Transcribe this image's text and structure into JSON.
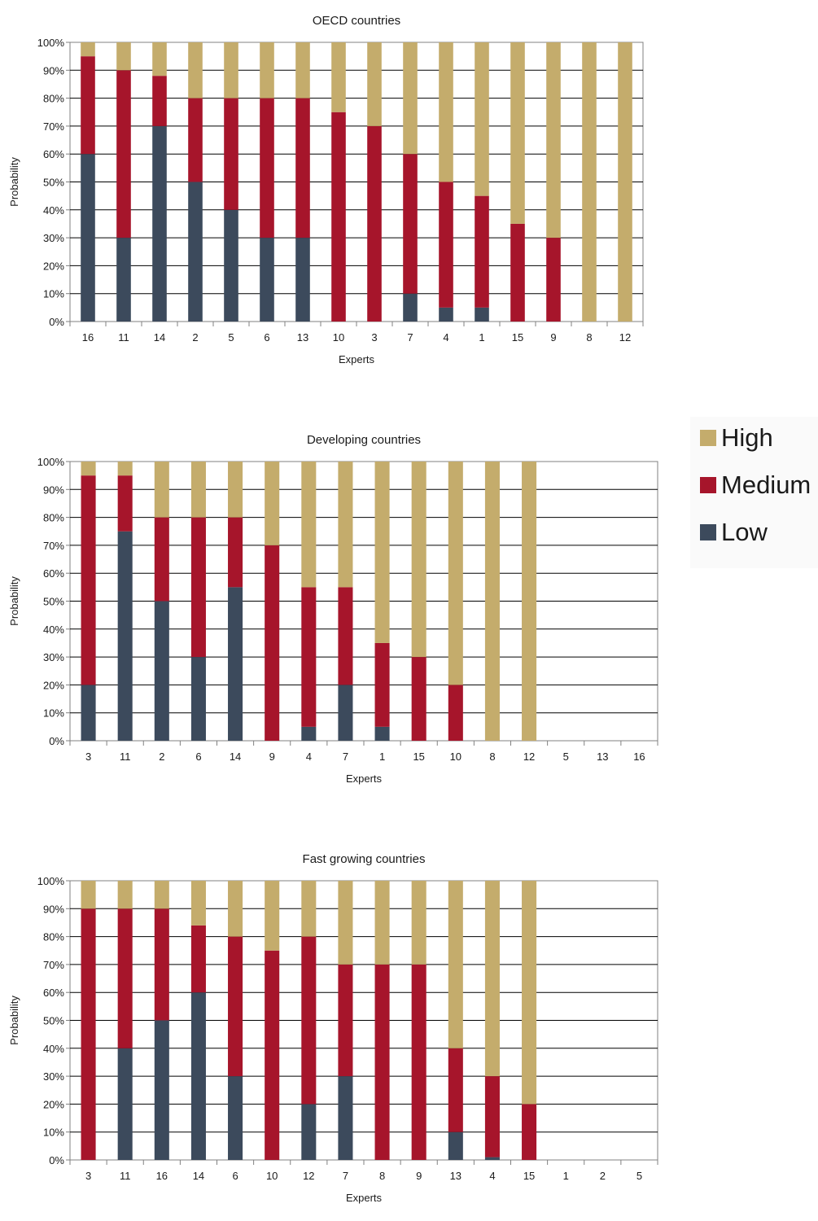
{
  "legend": {
    "items": [
      {
        "label": "High",
        "color": "#c4ac6c"
      },
      {
        "label": "Medium",
        "color": "#a6152b"
      },
      {
        "label": "Low",
        "color": "#3c4a5c"
      }
    ]
  },
  "chart_data": [
    {
      "type": "bar",
      "stacked": true,
      "title": "OECD countries",
      "xlabel": "Experts",
      "ylabel": "Probability",
      "ylim": [
        0,
        100
      ],
      "yticks": [
        "0%",
        "10%",
        "20%",
        "30%",
        "40%",
        "50%",
        "60%",
        "70%",
        "80%",
        "90%",
        "100%"
      ],
      "categories": [
        "16",
        "11",
        "14",
        "2",
        "5",
        "6",
        "13",
        "10",
        "3",
        "7",
        "4",
        "1",
        "15",
        "9",
        "8",
        "12"
      ],
      "series": [
        {
          "name": "Low",
          "values": [
            60,
            30,
            70,
            50,
            40,
            30,
            30,
            0,
            0,
            10,
            5,
            5,
            0,
            0,
            0,
            0
          ]
        },
        {
          "name": "Medium",
          "values": [
            35,
            60,
            18,
            30,
            40,
            50,
            50,
            75,
            70,
            50,
            45,
            40,
            35,
            30,
            0,
            0
          ]
        },
        {
          "name": "High",
          "values": [
            5,
            10,
            12,
            20,
            20,
            20,
            20,
            25,
            30,
            40,
            50,
            55,
            65,
            70,
            100,
            100
          ]
        }
      ]
    },
    {
      "type": "bar",
      "stacked": true,
      "title": "Developing countries",
      "xlabel": "Experts",
      "ylabel": "Probability",
      "ylim": [
        0,
        100
      ],
      "yticks": [
        "0%",
        "10%",
        "20%",
        "30%",
        "40%",
        "50%",
        "60%",
        "70%",
        "80%",
        "90%",
        "100%"
      ],
      "categories": [
        "3",
        "11",
        "2",
        "6",
        "14",
        "9",
        "4",
        "7",
        "1",
        "15",
        "10",
        "8",
        "12",
        "5",
        "13",
        "16"
      ],
      "series": [
        {
          "name": "Low",
          "values": [
            20,
            75,
            50,
            30,
            55,
            0,
            5,
            20,
            5,
            0,
            0,
            0,
            0,
            0,
            0,
            0
          ]
        },
        {
          "name": "Medium",
          "values": [
            75,
            20,
            30,
            50,
            25,
            70,
            50,
            35,
            30,
            30,
            20,
            0,
            0,
            0,
            0,
            0
          ]
        },
        {
          "name": "High",
          "values": [
            5,
            5,
            20,
            20,
            20,
            30,
            45,
            45,
            65,
            70,
            80,
            100,
            100,
            0,
            0,
            0
          ]
        }
      ]
    },
    {
      "type": "bar",
      "stacked": true,
      "title": "Fast growing countries",
      "xlabel": "Experts",
      "ylabel": "Probability",
      "ylim": [
        0,
        100
      ],
      "yticks": [
        "0%",
        "10%",
        "20%",
        "30%",
        "40%",
        "50%",
        "60%",
        "70%",
        "80%",
        "90%",
        "100%"
      ],
      "categories": [
        "3",
        "11",
        "16",
        "14",
        "6",
        "10",
        "12",
        "7",
        "8",
        "9",
        "13",
        "4",
        "15",
        "1",
        "2",
        "5"
      ],
      "series": [
        {
          "name": "Low",
          "values": [
            0,
            40,
            50,
            60,
            30,
            0,
            20,
            30,
            0,
            0,
            10,
            1,
            0,
            0,
            0,
            0
          ]
        },
        {
          "name": "Medium",
          "values": [
            90,
            50,
            40,
            24,
            50,
            75,
            60,
            40,
            70,
            70,
            30,
            29,
            20,
            0,
            0,
            0
          ]
        },
        {
          "name": "High",
          "values": [
            10,
            10,
            10,
            16,
            20,
            25,
            20,
            30,
            30,
            30,
            60,
            70,
            80,
            0,
            0,
            0
          ]
        }
      ]
    }
  ]
}
